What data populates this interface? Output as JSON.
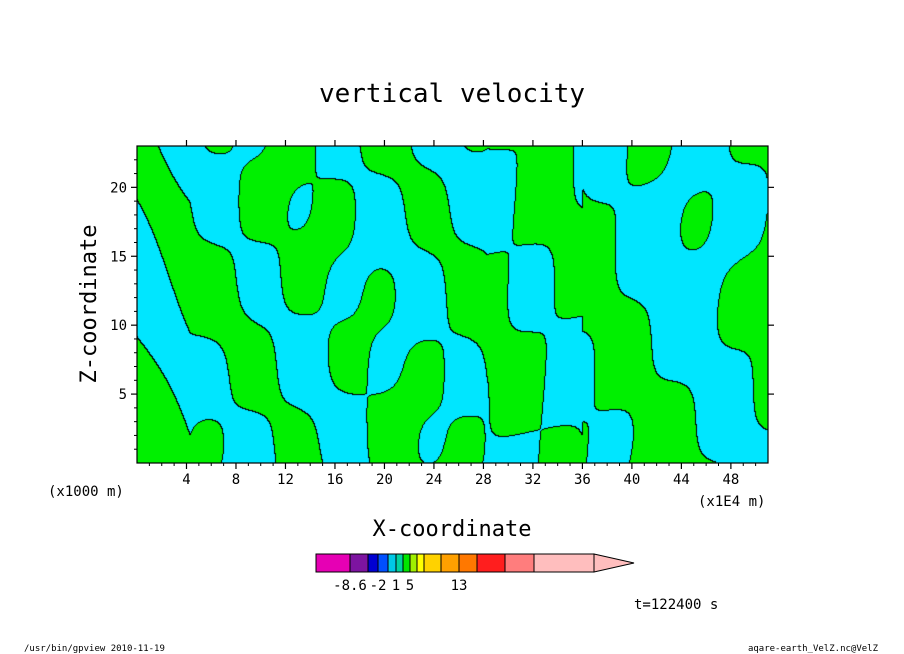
{
  "chart_data": {
    "type": "contour",
    "title": "vertical velocity",
    "xlabel": "X-coordinate",
    "ylabel": "Z-coordinate",
    "x_unit_left": "(x1000 m)",
    "x_unit_right": "(x1E4 m)",
    "xlim": [
      0,
      51
    ],
    "ylim": [
      0,
      23
    ],
    "x_ticks": [
      4,
      8,
      12,
      16,
      20,
      24,
      28,
      32,
      36,
      40,
      44,
      48
    ],
    "y_ticks": [
      5,
      10,
      15,
      20
    ],
    "legend_position": "bottom",
    "colorbar": {
      "colors": [
        "#e600b4",
        "#7d14a0",
        "#0000d2",
        "#0050ff",
        "#00c8e6",
        "#00d2a0",
        "#00e600",
        "#a0f000",
        "#ffff00",
        "#ffd200",
        "#ffa000",
        "#ff7800",
        "#ff1e1e",
        "#ff7d7d",
        "#ffbebe",
        "#ffbebe"
      ],
      "labels": [
        {
          "text": "-8.6",
          "boundary": 1
        },
        {
          "text": "-2",
          "boundary": 3
        },
        {
          "text": "1",
          "boundary": 5
        },
        {
          "text": "5",
          "boundary": 7
        },
        {
          "text": "13",
          "boundary": 11
        }
      ]
    },
    "field_colors": {
      "positive": "#00f000",
      "negative": "#00e6ff",
      "strong": "#000000"
    },
    "time_label": "t=122400  s",
    "footer_left": "/usr/bin/gpview   2010-11-19",
    "footer_right": "aqare-earth_VelZ.nc@VelZ"
  }
}
